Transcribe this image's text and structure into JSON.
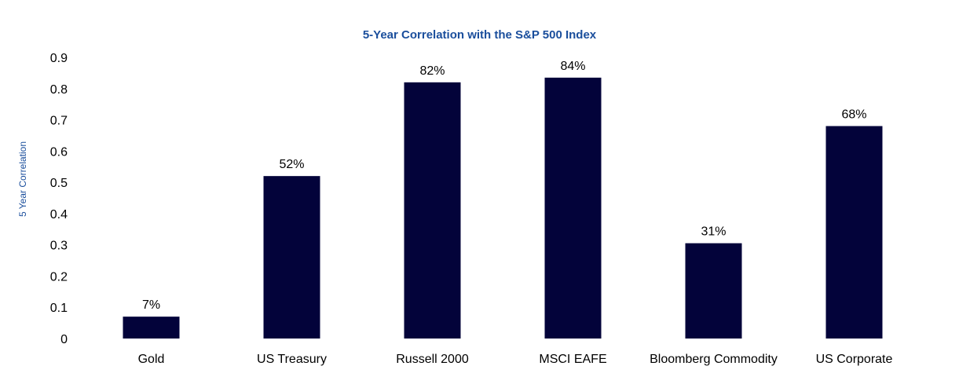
{
  "chart_data": {
    "type": "bar",
    "title": "5-Year Correlation with the S&P 500 Index",
    "xlabel": "",
    "ylabel": "5 Year Correlation",
    "categories": [
      "Gold",
      "US Treasury",
      "Russell 2000",
      "MSCI EAFE",
      "Bloomberg Commodity",
      "US Corporate"
    ],
    "values": [
      0.07,
      0.52,
      0.82,
      0.835,
      0.305,
      0.68
    ],
    "data_labels": [
      "7%",
      "52%",
      "82%",
      "84%",
      "31%",
      "68%"
    ],
    "ylim": [
      0,
      0.9
    ],
    "yticks": [
      0,
      0.1,
      0.2,
      0.3,
      0.4,
      0.5,
      0.6,
      0.7,
      0.8,
      0.9
    ],
    "ytick_labels": [
      "0",
      "0.1",
      "0.2",
      "0.3",
      "0.4",
      "0.5",
      "0.6",
      "0.7",
      "0.8",
      "0.9"
    ],
    "grid": false,
    "legend": "none",
    "colors": {
      "bar": "#03033a",
      "title": "#1a4e9c",
      "axis_label": "#1a4e9c",
      "text": "#000000"
    }
  }
}
